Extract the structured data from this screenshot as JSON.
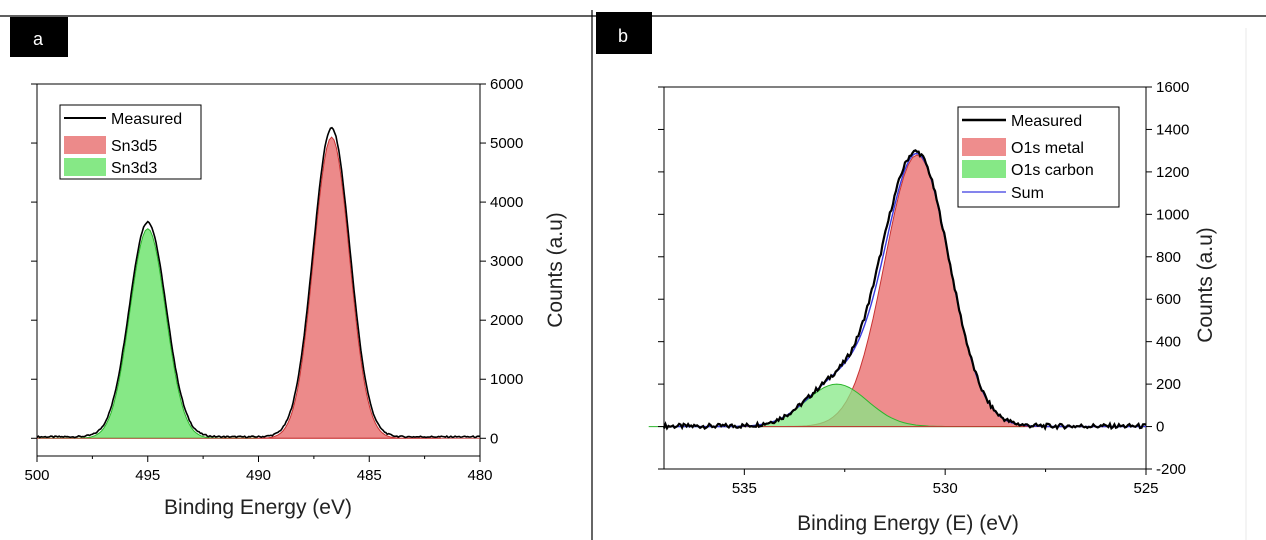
{
  "colors": {
    "measured": "#000000",
    "sn3d5_fill": "#ec8a8a",
    "sn3d5_edge": "#c83232",
    "sn3d3_fill": "#86e886",
    "sn3d3_edge": "#2cb52c",
    "o1s_metal_fill": "#ee8d8d",
    "o1s_metal_edge": "#c83232",
    "o1s_carbon_fill": "#86e886",
    "o1s_carbon_edge": "#2cb52c",
    "sum_line": "#3a3ae0",
    "panel_label_bg": "#000000",
    "panel_label_text": "#ffffff"
  },
  "chart_data": [
    {
      "panel_label": "a",
      "type": "area",
      "title": "",
      "xlabel": "Binding Energy (eV)",
      "ylabel": "Counts (a.u)",
      "x_reversed": true,
      "xlim": [
        500,
        480
      ],
      "ylim": [
        -300,
        6000
      ],
      "xticks": [
        500,
        495,
        490,
        485,
        480
      ],
      "xtick_labels": [
        "500",
        "495",
        "490",
        "485",
        "480"
      ],
      "yticks": [
        0,
        1000,
        2000,
        3000,
        4000,
        5000,
        6000
      ],
      "ytick_labels": [
        "0",
        "1000",
        "2000",
        "3000",
        "4000",
        "5000",
        "6000"
      ],
      "y_axis_side": "right",
      "grid": false,
      "legend_position": "top-left",
      "legend": [
        "Measured",
        "Sn3d5",
        "Sn3d3"
      ],
      "series": [
        {
          "name": "Measured",
          "kind": "line",
          "x": [
            500,
            497,
            496,
            495.5,
            495,
            494.5,
            494,
            493,
            492,
            491,
            490,
            489,
            488,
            487,
            486.6,
            486,
            485,
            484,
            483,
            480
          ],
          "y": [
            30,
            70,
            900,
            2700,
            3600,
            2700,
            900,
            100,
            40,
            40,
            110,
            400,
            1600,
            4300,
            5220,
            4000,
            900,
            230,
            70,
            30
          ]
        },
        {
          "name": "Sn3d5",
          "kind": "peak",
          "center": 486.7,
          "height": 5100,
          "fwhm": 1.9
        },
        {
          "name": "Sn3d3",
          "kind": "peak",
          "center": 495.0,
          "height": 3550,
          "fwhm": 1.9
        }
      ]
    },
    {
      "panel_label": "b",
      "type": "area",
      "title": "",
      "xlabel": "Binding Energy (E) (eV)",
      "ylabel": "Counts (a.u)",
      "x_reversed": true,
      "xlim": [
        537,
        525
      ],
      "ylim": [
        -200,
        1600
      ],
      "xticks": [
        535,
        530,
        525
      ],
      "xtick_labels": [
        "535",
        "530",
        "525"
      ],
      "yticks": [
        -200,
        0,
        200,
        400,
        600,
        800,
        1000,
        1200,
        1400,
        1600
      ],
      "ytick_labels": [
        "-200",
        "0",
        "200",
        "400",
        "600",
        "800",
        "1000",
        "1200",
        "1400",
        "1600"
      ],
      "y_axis_side": "right",
      "grid": false,
      "legend_position": "top-right",
      "legend": [
        "Measured",
        "O1s metal",
        "O1s carbon",
        "Sum"
      ],
      "series": [
        {
          "name": "Measured",
          "kind": "line",
          "x": [
            537,
            536,
            535,
            534,
            533.5,
            533,
            532.7,
            532.5,
            532,
            531.5,
            531,
            530.7,
            530.5,
            530,
            529.5,
            529,
            528.5,
            528,
            527,
            526,
            525
          ],
          "y": [
            10,
            0,
            10,
            60,
            120,
            200,
            260,
            280,
            400,
            700,
            1150,
            1290,
            1270,
            1000,
            600,
            260,
            80,
            20,
            10,
            0,
            10
          ]
        },
        {
          "name": "O1s metal",
          "kind": "peak",
          "center": 530.7,
          "height": 1280,
          "fwhm": 1.9
        },
        {
          "name": "O1s carbon",
          "kind": "peak",
          "center": 532.7,
          "height": 200,
          "fwhm": 1.8
        },
        {
          "name": "Sum",
          "kind": "sum_of_peaks"
        }
      ]
    }
  ]
}
